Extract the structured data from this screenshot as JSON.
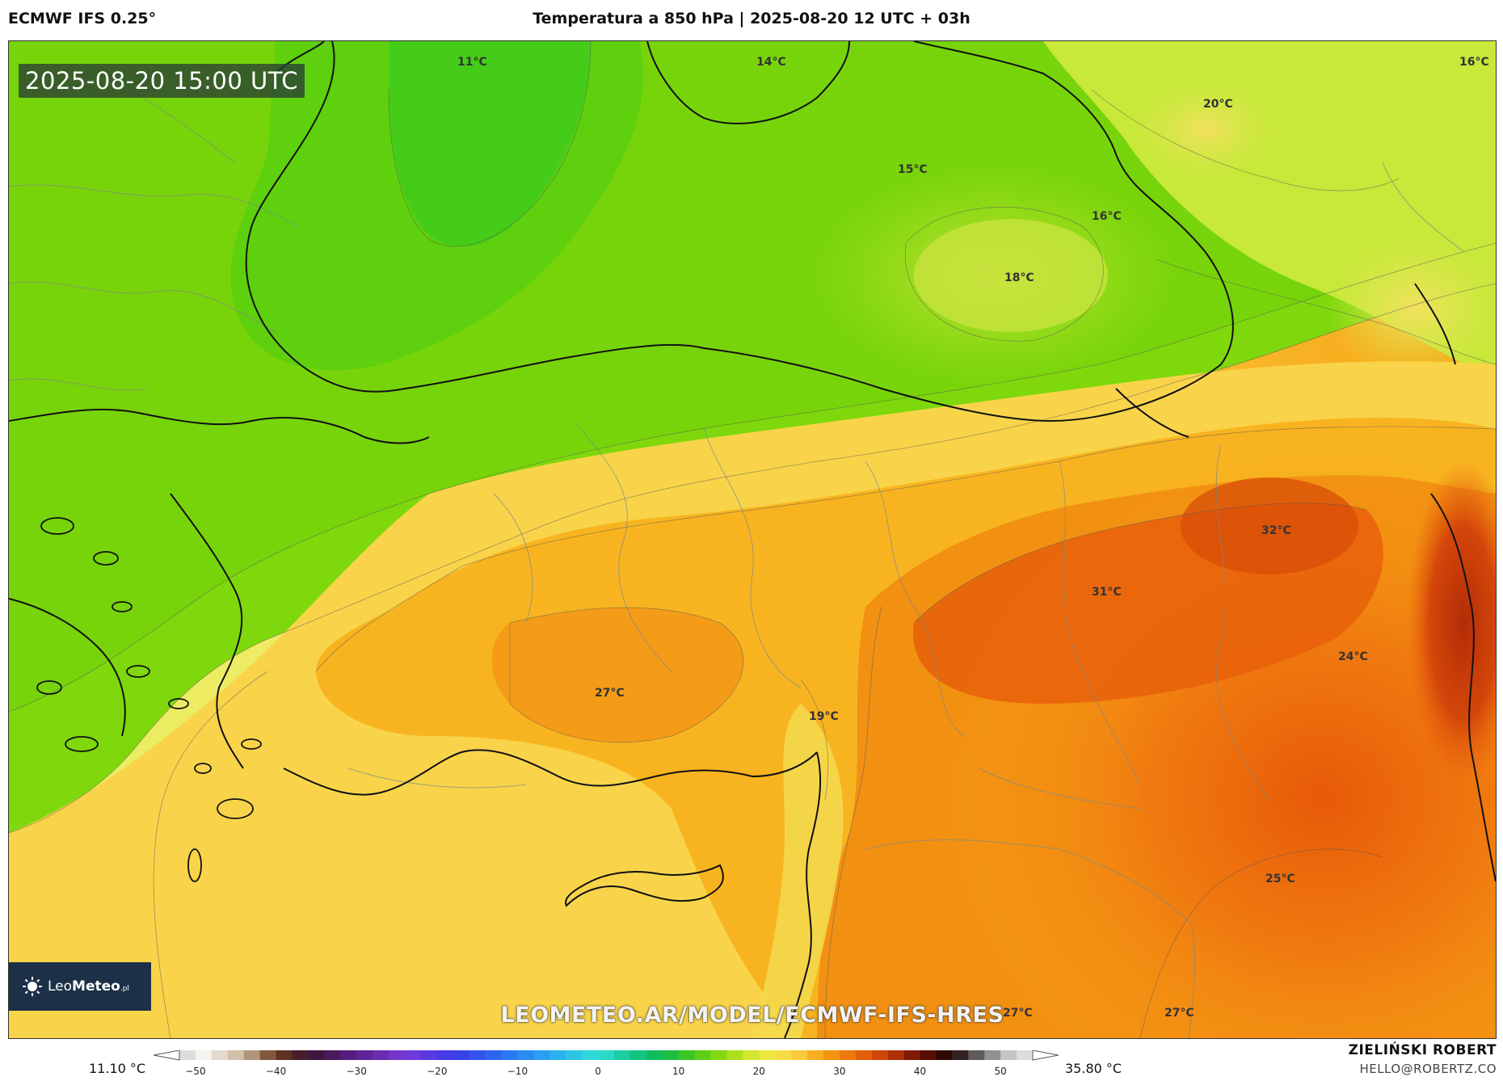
{
  "header": {
    "model": "ECMWF IFS 0.25°",
    "title": "Temperatura a 850 hPa | 2025-08-20 12 UTC + 03h"
  },
  "map": {
    "valid_time": "2025-08-20 15:00 UTC",
    "logo": {
      "name_light": "Leo",
      "name_bold": "Meteo",
      "suffix": ".pl"
    },
    "source_url": "LEOMETEO.AR/MODEL/ECMWF-IFS-HRES",
    "temperature_labels": {
      "t11": "11°C",
      "t14": "14°C",
      "t16_ne": "16°C",
      "t20": "20°C",
      "t15": "15°C",
      "t16": "16°C",
      "t18": "18°C",
      "t32": "32°C",
      "t31": "31°C",
      "t24": "24°C",
      "t27_w": "27°C",
      "t19": "19°C",
      "t25": "25°C",
      "t27_s": "27°C",
      "t27_se": "27°C"
    },
    "colors": {
      "cool_green": "#4fcc1c",
      "green": "#7fd80c",
      "yellow_green": "#c8e83a",
      "yellow": "#fbe76a",
      "orange": "#f7a012",
      "deep_orange": "#ee6a0a",
      "red": "#c43a08"
    }
  },
  "colorbar": {
    "min_label": "11.10 °C",
    "max_label": "35.80 °C",
    "tick_labels": [
      "−50",
      "−40",
      "−30",
      "−20",
      "−10",
      "0",
      "10",
      "20",
      "30",
      "40",
      "50"
    ]
  },
  "credits": {
    "author": "ZIELIŃSKI ROBERT",
    "email": "HELLO@ROBERTZ.CO"
  }
}
